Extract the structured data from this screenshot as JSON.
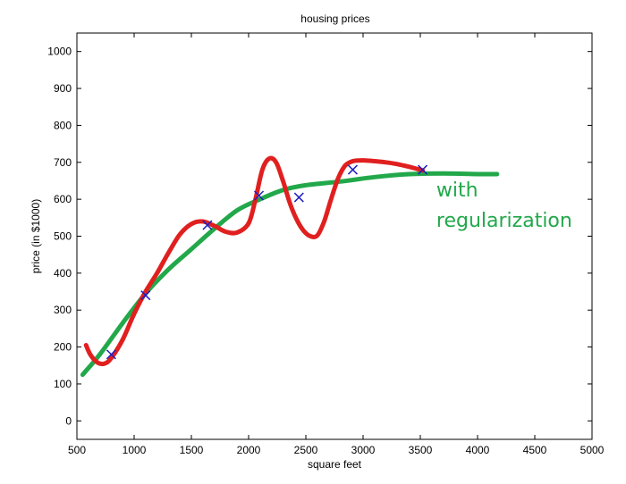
{
  "chart_data": {
    "type": "scatter",
    "title": "housing prices",
    "xlabel": "square feet",
    "ylabel": "price (in $1000)",
    "xlim": [
      500,
      5000
    ],
    "ylim": [
      -50,
      1050
    ],
    "xticks": [
      500,
      1000,
      1500,
      2000,
      2500,
      3000,
      3500,
      4000,
      4500,
      5000
    ],
    "yticks": [
      0,
      100,
      200,
      300,
      400,
      500,
      600,
      700,
      800,
      900,
      1000
    ],
    "grid": false,
    "legend": "none",
    "series": [
      {
        "kind": "points",
        "marker": "x",
        "color": "#1f1fbf",
        "x": [
          800,
          1100,
          1640,
          2090,
          2440,
          2910,
          3520
        ],
        "y": [
          180,
          340,
          530,
          610,
          605,
          680,
          680
        ]
      },
      {
        "kind": "line",
        "color": "#e0201f",
        "x": [
          580,
          620,
          680,
          740,
          800,
          900,
          1000,
          1100,
          1200,
          1300,
          1400,
          1500,
          1600,
          1700,
          1800,
          1900,
          2000,
          2060,
          2120,
          2180,
          2240,
          2300,
          2360,
          2420,
          2480,
          2540,
          2600,
          2660,
          2720,
          2780,
          2840,
          2900,
          2960,
          3020,
          3100,
          3200,
          3300,
          3400,
          3520
        ],
        "y": [
          205,
          178,
          158,
          155,
          170,
          220,
          290,
          350,
          400,
          455,
          505,
          533,
          540,
          528,
          512,
          510,
          535,
          600,
          680,
          710,
          700,
          650,
          590,
          545,
          515,
          500,
          502,
          540,
          600,
          655,
          690,
          702,
          705,
          705,
          703,
          700,
          695,
          688,
          678
        ]
      },
      {
        "kind": "line",
        "color": "#22a84a",
        "x": [
          550,
          700,
          900,
          1100,
          1300,
          1500,
          1700,
          1900,
          2100,
          2300,
          2500,
          2800,
          3100,
          3400,
          3700,
          4000,
          4170
        ],
        "y": [
          125,
          180,
          265,
          345,
          410,
          465,
          520,
          570,
          600,
          625,
          638,
          648,
          660,
          668,
          670,
          668,
          668
        ]
      }
    ],
    "annotations": [
      {
        "text": "with",
        "color": "#22a84a",
        "x": 3640,
        "y": 607
      },
      {
        "text": "regularization",
        "color": "#22a84a",
        "x": 3640,
        "y": 525
      }
    ]
  }
}
